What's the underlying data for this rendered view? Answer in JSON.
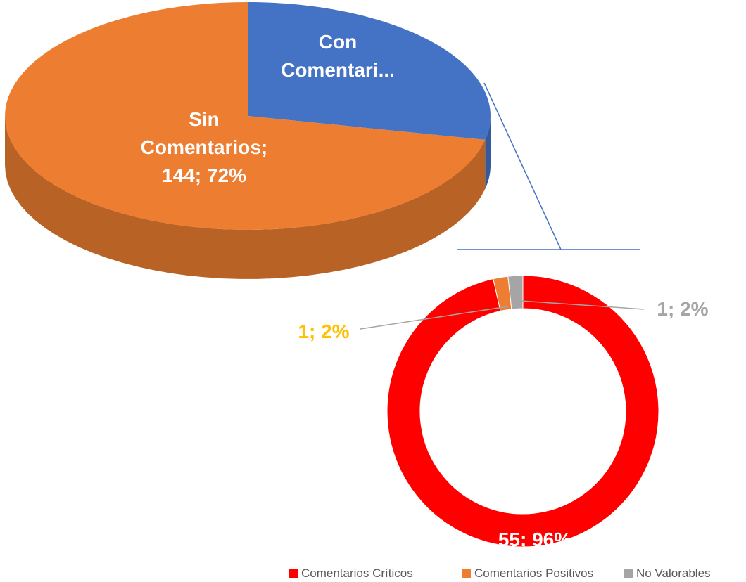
{
  "chart_data": [
    {
      "type": "pie3d",
      "values": [
        57,
        144
      ],
      "value_labels": [
        "Con Comentari...",
        "Sin Comentarios; 144; 72%"
      ],
      "colors": [
        "#4472c4",
        "#ed7d31"
      ]
    },
    {
      "type": "donut",
      "categories": [
        "Comentarios Críticos",
        "Comentarios Positivos",
        "No Valorables"
      ],
      "values": [
        55,
        1,
        1
      ],
      "value_labels": [
        "55; 96%",
        "1; 2%",
        "1; 2%"
      ],
      "colors": [
        "#ff0000",
        "#ed7d31",
        "#a5a5a5"
      ],
      "label_colors": [
        "#ffffff",
        "#ffc000",
        "#a5a5a5"
      ],
      "legend": "bottom"
    }
  ]
}
